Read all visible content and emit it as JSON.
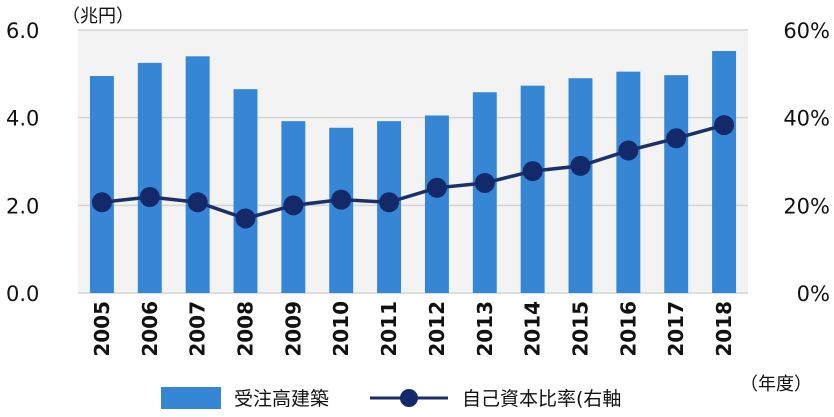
{
  "chart_data": {
    "type": "bar",
    "categories": [
      "2005",
      "2006",
      "2007",
      "2008",
      "2009",
      "2010",
      "2011",
      "2012",
      "2013",
      "2014",
      "2015",
      "2016",
      "2017",
      "2018"
    ],
    "series": [
      {
        "name": "受注高建築",
        "type": "bar",
        "axis": "left",
        "values": [
          4.95,
          5.25,
          5.4,
          4.65,
          3.92,
          3.77,
          3.92,
          4.05,
          4.58,
          4.73,
          4.9,
          5.05,
          4.97,
          5.52
        ]
      },
      {
        "name": "自己資本比率(右軸",
        "type": "line",
        "axis": "right",
        "values": [
          20.7,
          21.9,
          20.7,
          17.0,
          20.0,
          21.3,
          20.7,
          24.0,
          25.1,
          27.8,
          29.0,
          32.5,
          35.3,
          38.3
        ]
      }
    ],
    "y_left": {
      "unit_label": "（兆円）",
      "ticks": [
        "0.0",
        "2.0",
        "4.0",
        "6.0"
      ],
      "ylim": [
        0,
        6
      ]
    },
    "y_right": {
      "ticks": [
        "0%",
        "20%",
        "40%",
        "60%"
      ],
      "ylim": [
        0,
        60
      ]
    },
    "x_unit_label": "（年度）",
    "grid": true,
    "legend": "bottom"
  },
  "colors": {
    "bar": "#3586d4",
    "line": "#1b2f6b",
    "marker": "#13296a",
    "grid": "#d4d4d4",
    "plot_bg": "#f3f3f3"
  }
}
